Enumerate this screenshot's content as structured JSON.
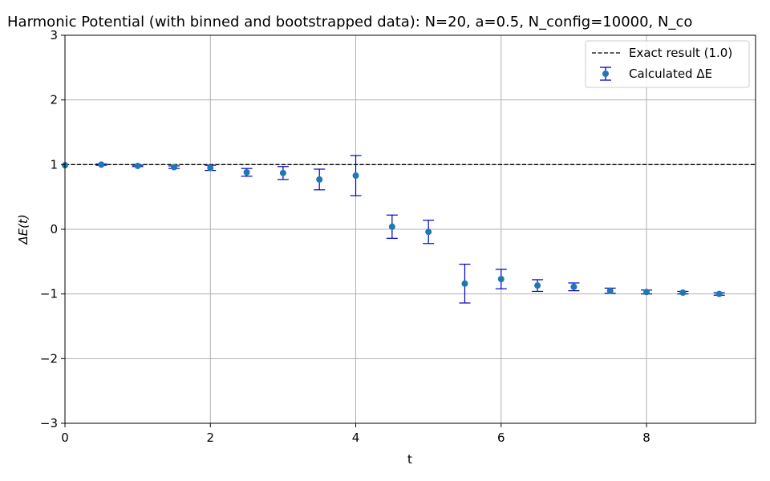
{
  "chart_data": {
    "type": "scatter",
    "title": "Harmonic Potential (with binned and bootstrapped data): N=20, a=0.5, N_config=10000, N_co",
    "xlabel": "t",
    "ylabel": "ΔE(t)",
    "xlim": [
      0,
      9.5
    ],
    "ylim": [
      -3,
      3
    ],
    "x_ticks": [
      "0",
      "2",
      "4",
      "6",
      "8"
    ],
    "y_ticks": [
      "−3",
      "−2",
      "−1",
      "0",
      "1",
      "2",
      "3"
    ],
    "grid": true,
    "legend_position": "top-right",
    "reference_line": {
      "name": "Exact result (1.0)",
      "y": 1.0,
      "style": "dashed",
      "color": "#000000"
    },
    "series": [
      {
        "name": "Calculated ΔE",
        "marker_color": "#1f77b4",
        "errorbar_color": "#0000cc",
        "points": [
          {
            "x": 0.0,
            "y": 0.99,
            "err": 0.0
          },
          {
            "x": 0.5,
            "y": 1.0,
            "err": 0.01
          },
          {
            "x": 1.0,
            "y": 0.98,
            "err": 0.01
          },
          {
            "x": 1.5,
            "y": 0.96,
            "err": 0.02
          },
          {
            "x": 2.0,
            "y": 0.95,
            "err": 0.04
          },
          {
            "x": 2.5,
            "y": 0.88,
            "err": 0.06
          },
          {
            "x": 3.0,
            "y": 0.87,
            "err": 0.1
          },
          {
            "x": 3.5,
            "y": 0.77,
            "err": 0.16
          },
          {
            "x": 4.0,
            "y": 0.83,
            "err": 0.31
          },
          {
            "x": 4.5,
            "y": 0.04,
            "err": 0.18
          },
          {
            "x": 5.0,
            "y": -0.04,
            "err": 0.18
          },
          {
            "x": 5.5,
            "y": -0.84,
            "err": 0.3
          },
          {
            "x": 6.0,
            "y": -0.77,
            "err": 0.15
          },
          {
            "x": 6.5,
            "y": -0.87,
            "err": 0.09
          },
          {
            "x": 7.0,
            "y": -0.89,
            "err": 0.06
          },
          {
            "x": 7.5,
            "y": -0.95,
            "err": 0.04
          },
          {
            "x": 8.0,
            "y": -0.97,
            "err": 0.03
          },
          {
            "x": 8.5,
            "y": -0.98,
            "err": 0.02
          },
          {
            "x": 9.0,
            "y": -1.0,
            "err": 0.02
          }
        ]
      }
    ]
  }
}
